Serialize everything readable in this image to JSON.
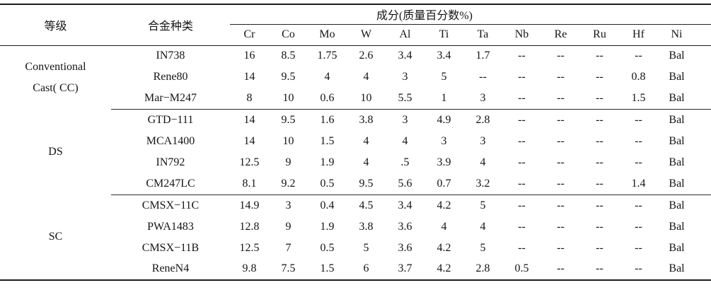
{
  "colors": {
    "background": "#ffffff",
    "text": "#151515",
    "rule_line": "#1c1c1c"
  },
  "table": {
    "grade_header": "等级",
    "alloy_header": "合金种类",
    "composition_header": "成分(质量百分数%)",
    "elements": [
      "Cr",
      "Co",
      "Mo",
      "W",
      "Al",
      "Ti",
      "Ta",
      "Nb",
      "Re",
      "Ru",
      "Hf",
      "Ni"
    ],
    "empty_marker": "--",
    "balance_label": "Bal",
    "groups": [
      {
        "grade_lines": [
          "Conventional",
          "Cast( CC)"
        ],
        "rows": [
          {
            "alloy": "IN738",
            "values": [
              "16",
              "8.5",
              "1.75",
              "2.6",
              "3.4",
              "3.4",
              "1.7",
              "--",
              "--",
              "--",
              "--",
              "Bal"
            ]
          },
          {
            "alloy": "Rene80",
            "values": [
              "14",
              "9.5",
              "4",
              "4",
              "3",
              "5",
              "--",
              "--",
              "--",
              "--",
              "0.8",
              "Bal"
            ]
          },
          {
            "alloy": "Mar−M247",
            "values": [
              "8",
              "10",
              "0.6",
              "10",
              "5.5",
              "1",
              "3",
              "--",
              "--",
              "--",
              "1.5",
              "Bal"
            ]
          }
        ]
      },
      {
        "grade_lines": [
          "DS"
        ],
        "rows": [
          {
            "alloy": "GTD−111",
            "values": [
              "14",
              "9.5",
              "1.6",
              "3.8",
              "3",
              "4.9",
              "2.8",
              "--",
              "--",
              "--",
              "--",
              "Bal"
            ]
          },
          {
            "alloy": "MCA1400",
            "values": [
              "14",
              "10",
              "1.5",
              "4",
              "4",
              "3",
              "3",
              "--",
              "--",
              "--",
              "--",
              "Bal"
            ]
          },
          {
            "alloy": "IN792",
            "values": [
              "12.5",
              "9",
              "1.9",
              "4",
              ".5",
              "3.9",
              "4",
              "--",
              "--",
              "--",
              "--",
              "Bal"
            ]
          },
          {
            "alloy": "CM247LC",
            "values": [
              "8.1",
              "9.2",
              "0.5",
              "9.5",
              "5.6",
              "0.7",
              "3.2",
              "--",
              "--",
              "--",
              "1.4",
              "Bal"
            ]
          }
        ]
      },
      {
        "grade_lines": [
          "SC"
        ],
        "rows": [
          {
            "alloy": "CMSX−11C",
            "values": [
              "14.9",
              "3",
              "0.4",
              "4.5",
              "3.4",
              "4.2",
              "5",
              "--",
              "--",
              "--",
              "--",
              "Bal"
            ]
          },
          {
            "alloy": "PWA1483",
            "values": [
              "12.8",
              "9",
              "1.9",
              "3.8",
              "3.6",
              "4",
              "4",
              "--",
              "--",
              "--",
              "--",
              "Bal"
            ]
          },
          {
            "alloy": "CMSX−11B",
            "values": [
              "12.5",
              "7",
              "0.5",
              "5",
              "3.6",
              "4.2",
              "5",
              "--",
              "--",
              "--",
              "--",
              "Bal"
            ]
          },
          {
            "alloy": "ReneN4",
            "values": [
              "9.8",
              "7.5",
              "1.5",
              "6",
              "3.7",
              "4.2",
              "2.8",
              "0.5",
              "--",
              "--",
              "--",
              "Bal"
            ]
          }
        ]
      }
    ]
  }
}
